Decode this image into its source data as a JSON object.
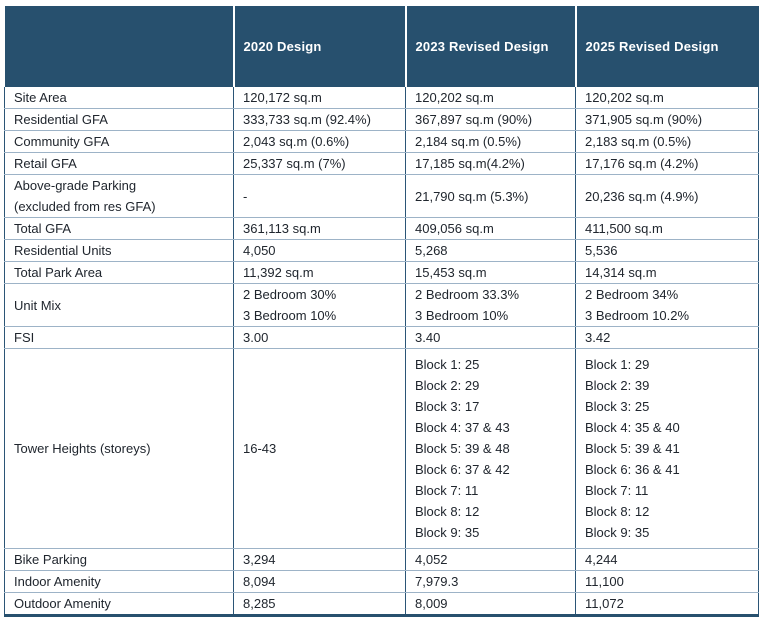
{
  "table": {
    "columns": [
      "",
      "2020 Design",
      "2023 Revised Design",
      "2025 Revised Design"
    ],
    "rows": [
      {
        "label": [
          "Site Area"
        ],
        "values": [
          [
            "120,172 sq.m"
          ],
          [
            "120,202 sq.m"
          ],
          [
            "120,202 sq.m"
          ]
        ]
      },
      {
        "label": [
          "Residential GFA"
        ],
        "values": [
          [
            "333,733 sq.m (92.4%)"
          ],
          [
            "367,897 sq.m (90%)"
          ],
          [
            "371,905 sq.m (90%)"
          ]
        ]
      },
      {
        "label": [
          "Community GFA"
        ],
        "values": [
          [
            "2,043 sq.m (0.6%)"
          ],
          [
            "2,184 sq.m (0.5%)"
          ],
          [
            "2,183 sq.m (0.5%)"
          ]
        ]
      },
      {
        "label": [
          "Retail GFA"
        ],
        "values": [
          [
            "25,337 sq.m (7%)"
          ],
          [
            "17,185 sq.m(4.2%)"
          ],
          [
            "17,176 sq.m (4.2%)"
          ]
        ]
      },
      {
        "label": [
          "Above-grade Parking",
          "(excluded from res GFA)"
        ],
        "values": [
          [
            "-"
          ],
          [
            "21,790 sq.m (5.3%)"
          ],
          [
            "20,236 sq.m (4.9%)"
          ]
        ]
      },
      {
        "label": [
          "Total GFA"
        ],
        "values": [
          [
            "361,113 sq.m"
          ],
          [
            "409,056 sq.m"
          ],
          [
            "411,500 sq.m"
          ]
        ]
      },
      {
        "label": [
          "Residential Units"
        ],
        "values": [
          [
            "4,050"
          ],
          [
            "5,268"
          ],
          [
            "5,536"
          ]
        ]
      },
      {
        "label": [
          "Total Park Area"
        ],
        "values": [
          [
            "11,392 sq.m"
          ],
          [
            "15,453 sq.m"
          ],
          [
            "14,314 sq.m"
          ]
        ]
      },
      {
        "label": [
          "Unit Mix"
        ],
        "values": [
          [
            "2 Bedroom 30%",
            "3 Bedroom 10%"
          ],
          [
            "2 Bedroom 33.3%",
            "3 Bedroom 10%"
          ],
          [
            "2 Bedroom 34%",
            "3 Bedroom 10.2%"
          ]
        ]
      },
      {
        "label": [
          "FSI"
        ],
        "values": [
          [
            "3.00"
          ],
          [
            "3.40"
          ],
          [
            "3.42"
          ]
        ]
      },
      {
        "label": [
          "Tower Heights (storeys)"
        ],
        "values": [
          [
            "16-43"
          ],
          [
            "Block 1: 25",
            "Block 2: 29",
            "Block 3: 17",
            "Block 4: 37 & 43",
            "Block 5: 39 & 48",
            "Block 6: 37 & 42",
            "Block 7: 11",
            "Block 8: 12",
            "Block 9: 35"
          ],
          [
            "Block 1: 29",
            "Block 2: 39",
            "Block 3: 25",
            "Block 4: 35 & 40",
            "Block 5: 39 & 41",
            "Block 6: 36 & 41",
            "Block 7: 11",
            "Block 8: 12",
            "Block 9: 35"
          ]
        ]
      },
      {
        "label": [
          "Bike Parking"
        ],
        "values": [
          [
            "3,294"
          ],
          [
            "4,052"
          ],
          [
            "4,244"
          ]
        ]
      },
      {
        "label": [
          "Indoor Amenity"
        ],
        "values": [
          [
            "8,094"
          ],
          [
            "7,979.3"
          ],
          [
            "11,100"
          ]
        ]
      },
      {
        "label": [
          "Outdoor Amenity"
        ],
        "values": [
          [
            "8,285"
          ],
          [
            "8,009"
          ],
          [
            "11,072"
          ]
        ]
      }
    ]
  },
  "colors": {
    "header_bg": "#27506e",
    "header_text": "#ffffff",
    "body_text": "#20262e",
    "grid_vertical": "#2b5576",
    "grid_horizontal": "#9db3c7",
    "bottom_border": "#27506e"
  }
}
